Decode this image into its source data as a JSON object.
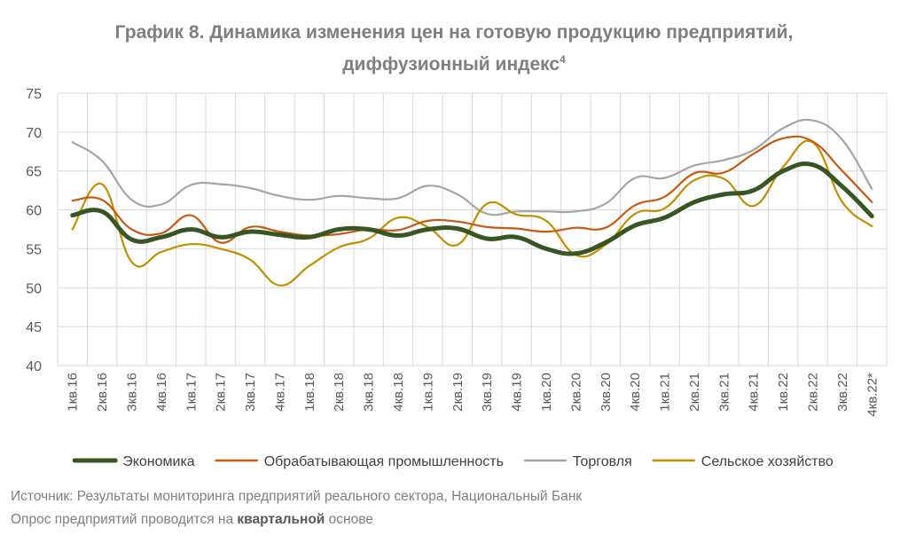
{
  "chart_data": {
    "type": "line",
    "title_line1": "График 8. Динамика изменения цен на готовую продукцию предприятий,",
    "title_line2": "диффузионный индекс",
    "title_superscript": "4",
    "categories": [
      "1кв.16",
      "2кв.16",
      "3кв.16",
      "4кв.16",
      "1кв.17",
      "2кв.17",
      "3кв.17",
      "4кв.17",
      "1кв.18",
      "2кв.18",
      "3кв.18",
      "4кв.18",
      "1кв.19",
      "2кв.19",
      "3кв.19",
      "4кв.19",
      "1кв.20",
      "2кв.20",
      "3кв.20",
      "4кв.20",
      "1кв.21",
      "2кв.21",
      "3кв.21",
      "4кв.21",
      "1кв.22",
      "2кв.22",
      "3кв.22",
      "4кв.22*"
    ],
    "ylim": [
      40,
      75
    ],
    "yticks": [
      40,
      45,
      50,
      55,
      60,
      65,
      70,
      75
    ],
    "grid": true,
    "legend_position": "bottom",
    "series": [
      {
        "name": "Экономика",
        "color": "#375623",
        "width": 5,
        "values": [
          59.3,
          59.8,
          56.2,
          56.5,
          57.5,
          56.5,
          57.2,
          56.8,
          56.5,
          57.5,
          57.5,
          56.7,
          57.5,
          57.6,
          56.3,
          56.5,
          55.0,
          54.4,
          55.8,
          58.0,
          59.0,
          61.0,
          62.0,
          62.5,
          65.0,
          65.8,
          63.0,
          59.2
        ]
      },
      {
        "name": "Обрабатывающая промышленность",
        "color": "#c55a11",
        "width": 2.2,
        "values": [
          61.2,
          61.3,
          57.5,
          57.0,
          59.3,
          55.8,
          57.8,
          57.2,
          56.7,
          56.9,
          57.5,
          57.4,
          58.6,
          58.5,
          57.8,
          57.6,
          57.2,
          57.7,
          57.7,
          60.6,
          61.7,
          64.7,
          64.8,
          67.2,
          69.2,
          68.8,
          65.0,
          61.0
        ]
      },
      {
        "name": "Торговля",
        "color": "#a5a5a5",
        "width": 2.2,
        "values": [
          68.7,
          66.3,
          61.3,
          60.7,
          63.2,
          63.3,
          62.8,
          61.8,
          61.3,
          61.8,
          61.5,
          61.5,
          63.1,
          62.0,
          59.5,
          59.8,
          59.8,
          59.8,
          60.8,
          64.1,
          64.1,
          65.7,
          66.4,
          67.7,
          70.5,
          71.5,
          69.0,
          62.7
        ]
      },
      {
        "name": "Сельское хозяйство",
        "color": "#bf9000",
        "width": 2.2,
        "values": [
          57.5,
          63.3,
          53.3,
          54.6,
          55.6,
          55.0,
          53.6,
          50.3,
          52.8,
          55.2,
          56.3,
          59.0,
          57.8,
          55.5,
          60.8,
          59.4,
          58.6,
          54.2,
          55.5,
          59.5,
          60.2,
          63.8,
          64.0,
          60.5,
          65.5,
          68.7,
          61.0,
          57.9
        ]
      }
    ]
  },
  "source": {
    "line1": "Источник: Результаты мониторинга предприятий реального сектора, Национальный Банк",
    "line2_before": "Опрос предприятий проводится на ",
    "line2_bold": "квартальной",
    "line2_after": " основе"
  }
}
